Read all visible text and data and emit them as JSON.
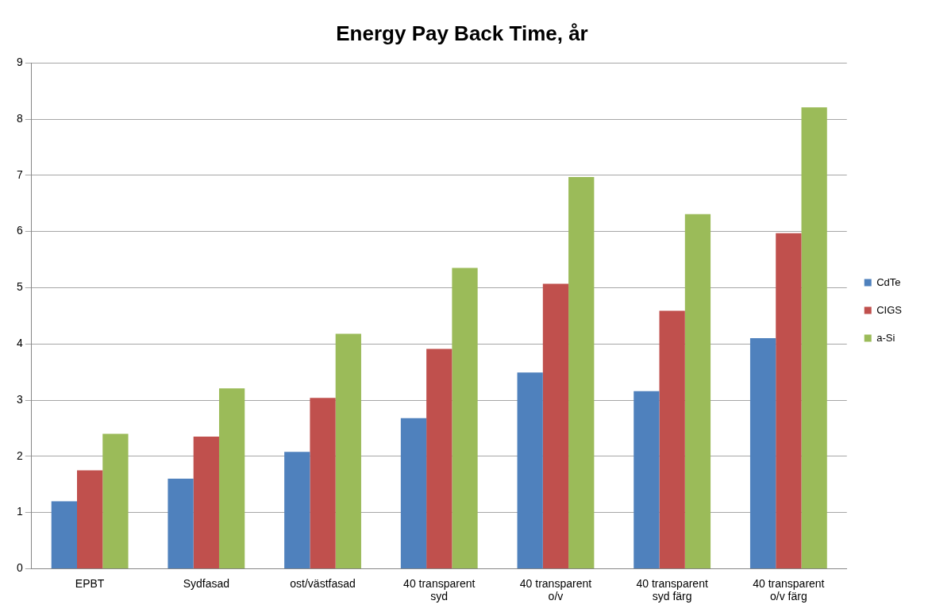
{
  "chart_data": {
    "type": "bar",
    "title": "Energy Pay Back Time, år",
    "categories": [
      "EPBT",
      "Sydfasad",
      "ost/västfasad",
      "40 transparent syd",
      "40 transparent o/v",
      "40 transparent syd färg",
      "40 transparent o/v färg"
    ],
    "series": [
      {
        "name": "CdTe",
        "color": "#4f81bd",
        "values": [
          1.2,
          1.6,
          2.08,
          2.68,
          3.49,
          3.16,
          4.1
        ]
      },
      {
        "name": "CIGS",
        "color": "#c0504d",
        "values": [
          1.75,
          2.35,
          3.04,
          3.91,
          5.07,
          4.59,
          5.97
        ]
      },
      {
        "name": "a-Si",
        "color": "#9bbb59",
        "values": [
          2.4,
          3.21,
          4.18,
          5.35,
          6.97,
          6.31,
          8.21
        ]
      }
    ],
    "ylim": [
      0,
      9
    ],
    "yticks": [
      0,
      1,
      2,
      3,
      4,
      5,
      6,
      7,
      8,
      9
    ],
    "grid": "y",
    "legend": "right"
  }
}
